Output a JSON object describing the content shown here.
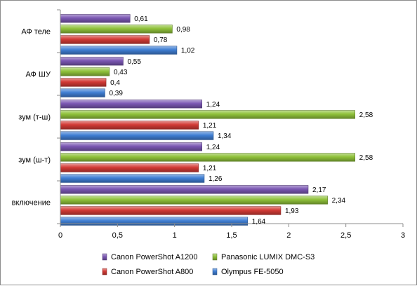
{
  "chart_data": {
    "type": "bar",
    "orientation": "horizontal",
    "categories": [
      "АФ теле",
      "АФ ШУ",
      "зум (т-ш)",
      "зум (ш-т)",
      "включение"
    ],
    "series": [
      {
        "name": "Canon PowerShot A1200",
        "color": "#7b57b3",
        "values": [
          0.61,
          0.55,
          1.24,
          1.24,
          2.17
        ],
        "labels": [
          "0,61",
          "0,55",
          "1,24",
          "1,24",
          "2,17"
        ]
      },
      {
        "name": "Panasonic LUMIX DMC-S3",
        "color": "#8fc13a",
        "values": [
          0.98,
          0.43,
          2.58,
          2.58,
          2.34
        ],
        "labels": [
          "0,98",
          "0,43",
          "2,58",
          "2,58",
          "2,34"
        ]
      },
      {
        "name": "Canon PowerShot A800",
        "color": "#d23a35",
        "values": [
          0.78,
          0.4,
          1.21,
          1.21,
          1.93
        ],
        "labels": [
          "0,78",
          "0,4",
          "1,21",
          "1,21",
          "1,93"
        ]
      },
      {
        "name": "Olympus FE-5050",
        "color": "#3f7ed3",
        "values": [
          1.02,
          0.39,
          1.34,
          1.26,
          1.64
        ],
        "labels": [
          "1,02",
          "0,39",
          "1,34",
          "1,26",
          "1,64"
        ]
      }
    ],
    "xlim": [
      0,
      3
    ],
    "xticks": [
      0,
      0.5,
      1,
      1.5,
      2,
      2.5,
      3
    ],
    "xtick_labels": [
      "0",
      "0,5",
      "1",
      "1,5",
      "2",
      "2,5",
      "3"
    ],
    "grid": false,
    "legend_position": "bottom",
    "title": "",
    "xlabel": "",
    "ylabel": ""
  }
}
